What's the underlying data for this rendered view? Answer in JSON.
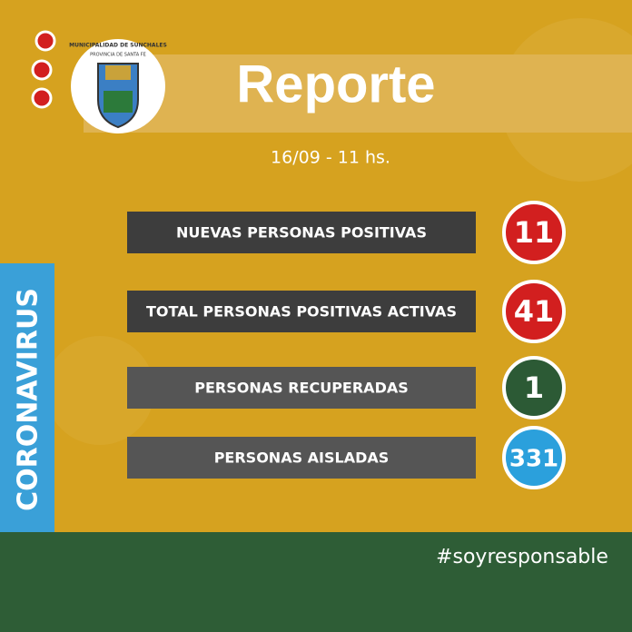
{
  "header": {
    "title": "Reporte",
    "subtitle": "16/09 - 11 hs."
  },
  "logo": {
    "name": "MUNICIPALIDAD DE SUNCHALES",
    "province": "PROVINCIA DE SANTA FE"
  },
  "side_label": "CORONAVIRUS",
  "rows": [
    {
      "label": "NUEVAS PERSONAS POSITIVAS",
      "value": 11,
      "color": "#d21f1f",
      "box": "#3d3d3d"
    },
    {
      "label": "TOTAL PERSONAS POSITIVAS ACTIVAS",
      "value": 41,
      "color": "#d21f1f",
      "box": "#3d3d3d"
    },
    {
      "label": "PERSONAS RECUPERADAS",
      "value": 1,
      "color": "#2c5a35",
      "box": "#555555"
    },
    {
      "label": "PERSONAS AISLADAS",
      "value": 331,
      "color": "#2ba0dc",
      "box": "#555555"
    }
  ],
  "footer": {
    "hashtag": "#soyresponsable"
  }
}
